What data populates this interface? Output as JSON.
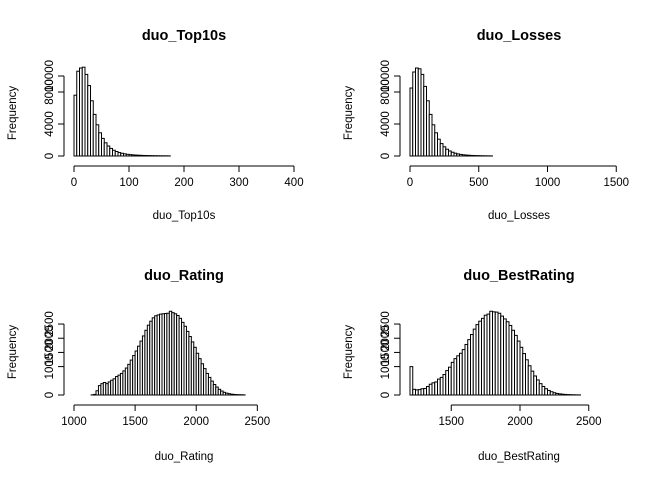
{
  "chart_data": [
    {
      "type": "bar",
      "title": "duo_Top10s",
      "xlabel": "duo_Top10s",
      "ylabel": "Frequency",
      "xlim": [
        0,
        400
      ],
      "ylim": [
        0,
        11500
      ],
      "xticks": [
        0,
        100,
        200,
        300,
        400
      ],
      "yticks": [
        0,
        4000,
        8000,
        10000
      ],
      "bin_width": 5,
      "bin_start": 0,
      "values": [
        7600,
        10600,
        11000,
        11100,
        10200,
        8800,
        6900,
        5200,
        3900,
        2900,
        2200,
        1650,
        1250,
        950,
        720,
        560,
        430,
        340,
        270,
        210,
        170,
        140,
        115,
        95,
        80,
        65,
        55,
        45,
        38,
        32,
        27,
        23,
        20,
        17,
        15
      ]
    },
    {
      "type": "bar",
      "title": "duo_Losses",
      "xlabel": "duo_Losses",
      "ylabel": "Frequency",
      "xlim": [
        0,
        1600
      ],
      "ylim": [
        0,
        11500
      ],
      "xticks": [
        0,
        500,
        1000,
        1500
      ],
      "yticks": [
        0,
        4000,
        8000,
        10000
      ],
      "bin_width": 20,
      "bin_start": 0,
      "values": [
        8500,
        10500,
        11000,
        10900,
        10200,
        8700,
        6900,
        5200,
        3900,
        2900,
        2100,
        1550,
        1150,
        850,
        630,
        470,
        350,
        260,
        195,
        150,
        115,
        90,
        70,
        55,
        42,
        33,
        26,
        20,
        16,
        12
      ]
    },
    {
      "type": "bar",
      "title": "duo_Rating",
      "xlabel": "duo_Rating",
      "ylabel": "Frequency",
      "xlim": [
        1000,
        2800
      ],
      "ylim": [
        0,
        3100
      ],
      "xticks": [
        1000,
        1500,
        2000,
        2500
      ],
      "yticks": [
        0,
        1000,
        1500,
        2000,
        2500
      ],
      "bin_width": 20,
      "bin_start": 1000,
      "values": [
        0,
        0,
        0,
        0,
        0,
        0,
        0,
        5,
        20,
        150,
        330,
        400,
        440,
        400,
        460,
        520,
        570,
        650,
        700,
        760,
        850,
        950,
        1080,
        1230,
        1390,
        1550,
        1720,
        1900,
        2080,
        2280,
        2460,
        2600,
        2720,
        2790,
        2820,
        2850,
        2860,
        2870,
        2880,
        2950,
        2900,
        2860,
        2800,
        2700,
        2560,
        2420,
        2240,
        2060,
        1870,
        1680,
        1470,
        1280,
        1100,
        930,
        760,
        620,
        490,
        370,
        280,
        200,
        140,
        95,
        65,
        45,
        30,
        20,
        14,
        10,
        7,
        5
      ]
    },
    {
      "type": "bar",
      "title": "duo_BestRating",
      "xlabel": "duo_BestRating",
      "ylabel": "Frequency",
      "xlim": [
        1200,
        2800
      ],
      "ylim": [
        0,
        3100
      ],
      "xticks": [
        1500,
        2000,
        2500
      ],
      "yticks": [
        0,
        1000,
        1500,
        2000,
        2500
      ],
      "bin_width": 20,
      "bin_start": 1200,
      "values": [
        1000,
        200,
        180,
        190,
        220,
        230,
        300,
        380,
        430,
        460,
        560,
        620,
        720,
        860,
        980,
        1150,
        1280,
        1380,
        1470,
        1600,
        1780,
        1950,
        2130,
        2320,
        2480,
        2600,
        2700,
        2810,
        2850,
        2950,
        2930,
        2920,
        2880,
        2780,
        2680,
        2580,
        2450,
        2280,
        2100,
        1900,
        1680,
        1460,
        1240,
        1030,
        840,
        670,
        530,
        400,
        300,
        220,
        160,
        115,
        80,
        55,
        40,
        28,
        20,
        14,
        10,
        7,
        5,
        3
      ]
    }
  ]
}
